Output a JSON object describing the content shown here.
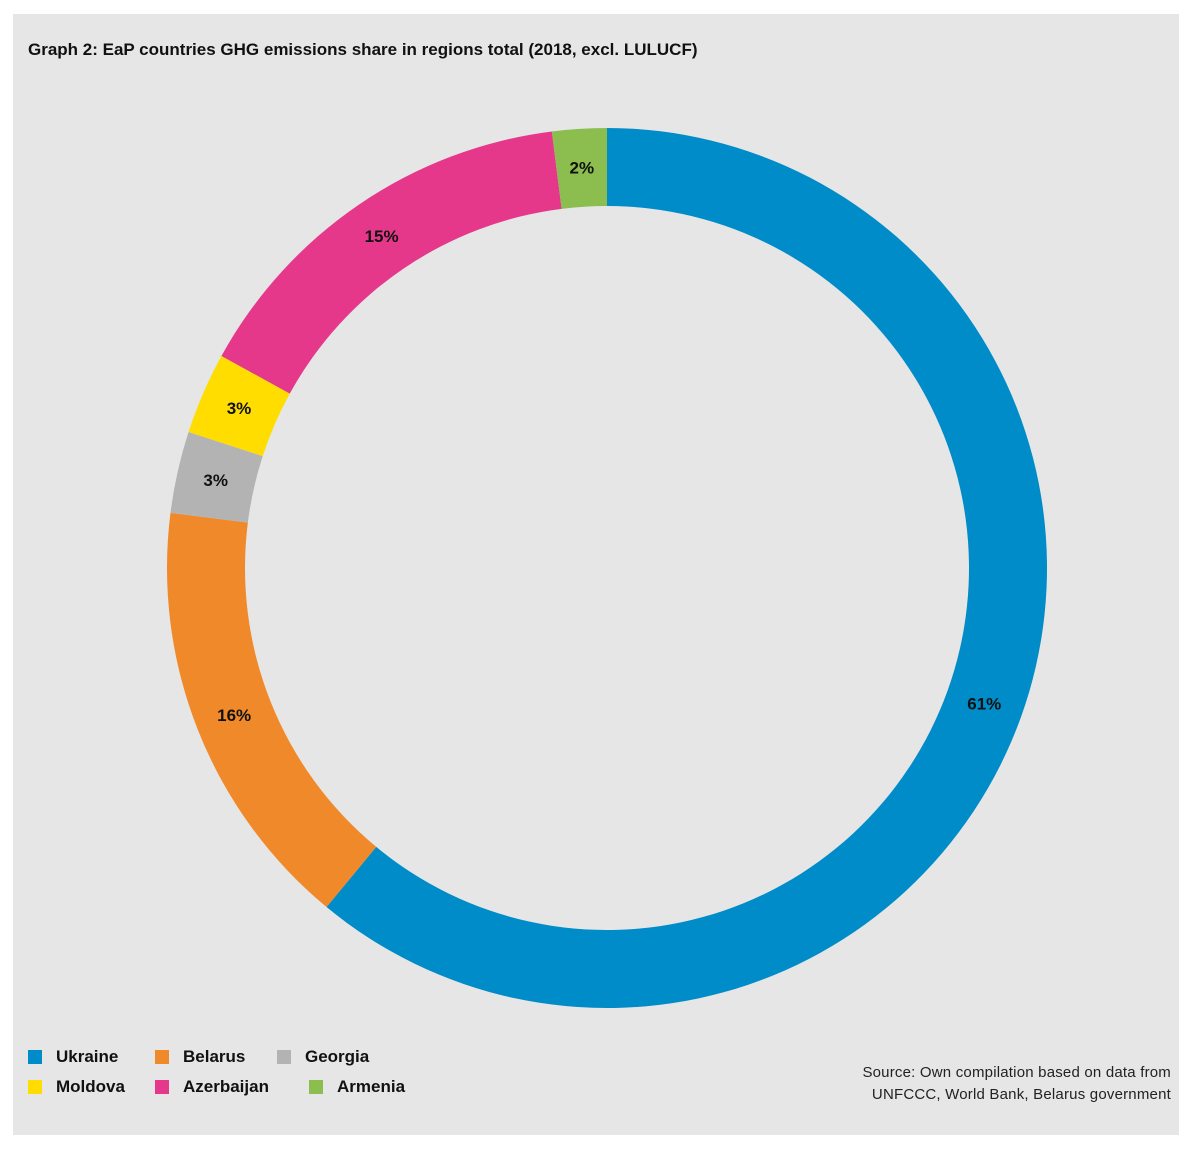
{
  "title": "Graph 2: EaP countries GHG emissions share in regions total (2018, excl. LULUCF)",
  "chart_data": {
    "type": "pie",
    "donut": true,
    "start_angle": "12 o'clock",
    "direction": "clockwise",
    "slices": [
      {
        "name": "Ukraine",
        "value": 61,
        "label": "61%",
        "color": "#008bc9"
      },
      {
        "name": "Belarus",
        "value": 16,
        "label": "16%",
        "color": "#f0892a"
      },
      {
        "name": "Georgia",
        "value": 3,
        "label": "3%",
        "color": "#b3b3b3"
      },
      {
        "name": "Moldova",
        "value": 3,
        "label": "3%",
        "color": "#ffdd00"
      },
      {
        "name": "Azerbaijan",
        "value": 15,
        "label": "15%",
        "color": "#e5388a"
      },
      {
        "name": "Armenia",
        "value": 2,
        "label": "2%",
        "color": "#8bbd4f"
      }
    ],
    "legend_placement": "bottom-left"
  },
  "legend": {
    "rows": [
      [
        {
          "label": "Ukraine",
          "color": "#008bc9"
        },
        {
          "label": "Belarus",
          "color": "#f0892a"
        },
        {
          "label": "Georgia",
          "color": "#b3b3b3"
        }
      ],
      [
        {
          "label": "Moldova",
          "color": "#ffdd00"
        },
        {
          "label": "Azerbaijan",
          "color": "#e5388a"
        },
        {
          "label": "Armenia",
          "color": "#8bbd4f"
        }
      ]
    ]
  },
  "source": {
    "line1": "Source: Own compilation based on data from",
    "line2": "UNFCCC, World Bank, Belarus government"
  }
}
